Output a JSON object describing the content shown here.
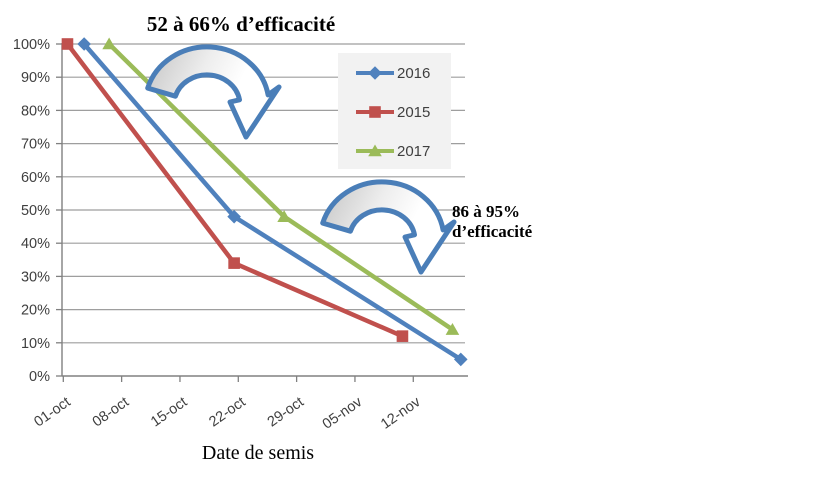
{
  "annotations": {
    "top_label": "52 à 66% d’efficacité",
    "right_label_line1": "86 à 95%",
    "right_label_line2": "d’efficacité"
  },
  "chart_data": {
    "type": "line",
    "xlabel": "Date de semis",
    "ylabel": "",
    "ylim": [
      0,
      100
    ],
    "y_step": 10,
    "grid": true,
    "legend_position": "upper-right",
    "y_tick_labels": [
      "0%",
      "10%",
      "20%",
      "30%",
      "40%",
      "50%",
      "60%",
      "70%",
      "80%",
      "90%",
      "100%"
    ],
    "x_tick_labels": [
      "01-oct",
      "08-oct",
      "15-oct",
      "22-oct",
      "29-oct",
      "05-nov",
      "12-nov"
    ],
    "x_tick_days": [
      1,
      8,
      15,
      22,
      29,
      36,
      43
    ],
    "series": [
      {
        "name": "2016",
        "color": "#4F81BD",
        "marker": "diamond",
        "points": [
          {
            "day": 3.5,
            "date": "03-oct",
            "value": 100
          },
          {
            "day": 21.5,
            "date": "22-oct",
            "value": 48
          },
          {
            "day": 48.7,
            "date": "18-nov",
            "value": 5
          }
        ]
      },
      {
        "name": "2015",
        "color": "#C0504D",
        "marker": "square",
        "points": [
          {
            "day": 1.5,
            "date": "01-oct",
            "value": 100
          },
          {
            "day": 21.5,
            "date": "22-oct",
            "value": 34
          },
          {
            "day": 41.7,
            "date": "11-nov",
            "value": 12
          }
        ]
      },
      {
        "name": "2017",
        "color": "#9BBB59",
        "marker": "triangle",
        "points": [
          {
            "day": 6.5,
            "date": "06-oct",
            "value": 100
          },
          {
            "day": 27.5,
            "date": "27-oct",
            "value": 48
          },
          {
            "day": 47.7,
            "date": "17-nov",
            "value": 14
          }
        ]
      }
    ]
  },
  "colors": {
    "grid": "#9E9E9E",
    "axis": "#808080",
    "tick_text": "#3F3F3F",
    "legend_bg": "#F2F2F2",
    "arrow_outline": "#4A7EB8",
    "arrow_fill_dark": "#C3C3C3",
    "arrow_fill_light": "#FFFFFF"
  }
}
